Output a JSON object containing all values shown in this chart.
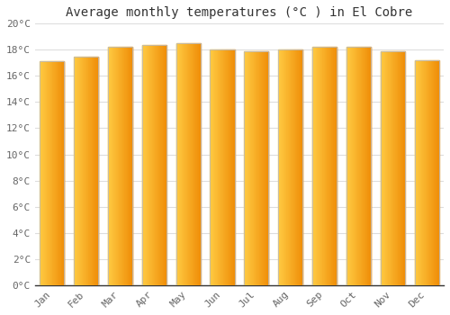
{
  "title": "Average monthly temperatures (°C ) in El Cobre",
  "months": [
    "Jan",
    "Feb",
    "Mar",
    "Apr",
    "May",
    "Jun",
    "Jul",
    "Aug",
    "Sep",
    "Oct",
    "Nov",
    "Dec"
  ],
  "values": [
    17.1,
    17.5,
    18.2,
    18.4,
    18.5,
    18.0,
    17.9,
    18.0,
    18.2,
    18.2,
    17.9,
    17.2
  ],
  "bar_color_left": "#FFCC44",
  "bar_color_right": "#F0900A",
  "bar_edge_color": "#BBBBBB",
  "ylim": [
    0,
    20
  ],
  "yticks": [
    0,
    2,
    4,
    6,
    8,
    10,
    12,
    14,
    16,
    18,
    20
  ],
  "ytick_labels": [
    "0°C",
    "2°C",
    "4°C",
    "6°C",
    "8°C",
    "10°C",
    "12°C",
    "14°C",
    "16°C",
    "18°C",
    "20°C"
  ],
  "background_color": "#FFFFFF",
  "grid_color": "#DDDDDD",
  "title_fontsize": 10,
  "tick_fontsize": 8,
  "bar_width": 0.72,
  "gradient_steps": 50
}
